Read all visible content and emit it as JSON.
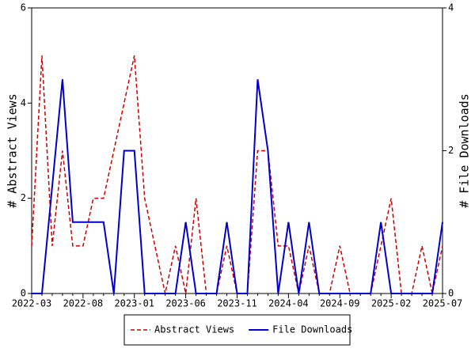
{
  "chart_data": {
    "type": "line",
    "categories": [
      "2022-03",
      null,
      null,
      null,
      null,
      "2022-08",
      null,
      null,
      null,
      null,
      "2023-01",
      null,
      null,
      null,
      null,
      "2023-06",
      null,
      null,
      null,
      null,
      "2023-11",
      null,
      null,
      null,
      null,
      "2024-04",
      null,
      null,
      null,
      null,
      "2024-09",
      null,
      null,
      null,
      null,
      "2025-02",
      null,
      null,
      null,
      null,
      "2025-07"
    ],
    "y_label": "# Abstract Views",
    "y2_label": "# File Downloads",
    "ylim": [
      0,
      6
    ],
    "yticks": [
      0,
      2,
      4,
      6
    ],
    "y2lim": [
      0,
      4
    ],
    "y2ticks": [
      0,
      2,
      4
    ],
    "legend": "bottom",
    "series": [
      {
        "name": "Abstract Views",
        "color": "#cc0000",
        "dash": true,
        "values": [
          1,
          5,
          1,
          3,
          1,
          1,
          2,
          2,
          3,
          4,
          5,
          2,
          1,
          0,
          1,
          0,
          2,
          0,
          0,
          1,
          0,
          0,
          3,
          3,
          1,
          1,
          0,
          1,
          0,
          0,
          1,
          0,
          0,
          0,
          1,
          2,
          0,
          0,
          1,
          0,
          1
        ]
      },
      {
        "name": "File Downloads",
        "color": "#0000cc",
        "axis": "y2",
        "values": [
          0,
          0,
          1.5,
          3,
          1,
          1,
          1,
          1,
          0,
          2,
          2,
          0,
          0,
          0,
          0,
          1,
          0,
          0,
          0,
          1,
          0,
          0,
          3,
          2,
          0,
          1,
          0,
          1,
          0,
          0,
          0,
          0,
          0,
          0,
          1,
          0,
          0,
          0,
          0,
          0,
          1
        ]
      }
    ]
  }
}
